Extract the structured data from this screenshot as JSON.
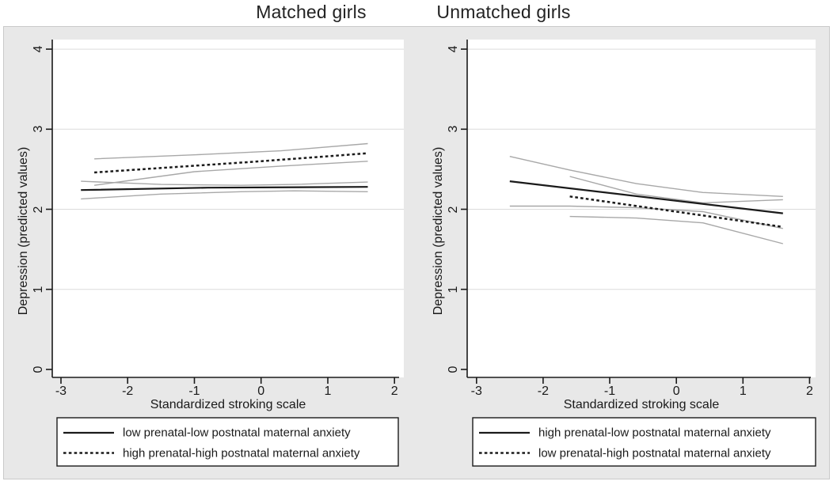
{
  "figure": {
    "background": "#e8e8e8",
    "plot_background": "#ffffff",
    "grid_color": "#dcdcdc",
    "axis_color": "#1a1a1a",
    "line_color": "#1a1a1a",
    "ci_color": "#a8a8a8"
  },
  "chart_data": [
    {
      "type": "line",
      "title": "Matched girls",
      "xlabel": "Standardized stroking scale",
      "ylabel": "Depression (predicted values)",
      "xticks": [
        -3,
        -2,
        -1,
        0,
        1,
        2
      ],
      "yticks": [
        0,
        1,
        2,
        3,
        4
      ],
      "xlim": [
        -3.13,
        2.14
      ],
      "ylim": [
        -0.1,
        4.12
      ],
      "grid": "horizontal gridlines at labeled y values",
      "legend_position": "below plot, boxed",
      "series": [
        {
          "name": "low prenatal-low postnatal maternal anxiety",
          "role": "mean",
          "style": "solid",
          "points": [
            [
              -2.7,
              2.24
            ],
            [
              -0.8,
              2.27
            ],
            [
              1.6,
              2.28
            ]
          ]
        },
        {
          "name": "low-low 95% CI upper",
          "role": "ci",
          "style": "ci",
          "points": [
            [
              -2.7,
              2.35
            ],
            [
              -1.5,
              2.31
            ],
            [
              -0.3,
              2.3
            ],
            [
              0.5,
              2.31
            ],
            [
              1.6,
              2.34
            ]
          ]
        },
        {
          "name": "low-low 95% CI lower",
          "role": "ci",
          "style": "ci",
          "points": [
            [
              -2.7,
              2.13
            ],
            [
              -1.5,
              2.19
            ],
            [
              -0.3,
              2.22
            ],
            [
              0.5,
              2.23
            ],
            [
              1.6,
              2.22
            ]
          ]
        },
        {
          "name": "high prenatal-high postnatal maternal anxiety",
          "role": "mean",
          "style": "dashed",
          "points": [
            [
              -2.5,
              2.46
            ],
            [
              0,
              2.6
            ],
            [
              1.6,
              2.7
            ]
          ]
        },
        {
          "name": "high-high 95% CI upper",
          "role": "ci",
          "style": "ci",
          "points": [
            [
              -2.5,
              2.63
            ],
            [
              -1.0,
              2.68
            ],
            [
              0.3,
              2.73
            ],
            [
              1.6,
              2.82
            ]
          ]
        },
        {
          "name": "high-high 95% CI lower",
          "role": "ci",
          "style": "ci",
          "points": [
            [
              -2.5,
              2.3
            ],
            [
              -1.0,
              2.47
            ],
            [
              0.3,
              2.54
            ],
            [
              1.6,
              2.6
            ]
          ]
        }
      ],
      "legend": [
        {
          "style": "solid",
          "label": "low prenatal-low postnatal maternal anxiety"
        },
        {
          "style": "dashed",
          "label": "high prenatal-high postnatal maternal anxiety"
        }
      ]
    },
    {
      "type": "line",
      "title": "Unmatched girls",
      "xlabel": "Standardized stroking scale",
      "ylabel": "Depression (predicted values)",
      "xticks": [
        -3,
        -2,
        -1,
        0,
        1,
        2
      ],
      "yticks": [
        0,
        1,
        2,
        3,
        4
      ],
      "xlim": [
        -3.14,
        2.09
      ],
      "ylim": [
        -0.1,
        4.12
      ],
      "grid": "horizontal gridlines at labeled y values",
      "legend_position": "below plot, boxed",
      "series": [
        {
          "name": "high prenatal-low postnatal maternal anxiety",
          "role": "mean",
          "style": "solid",
          "points": [
            [
              -2.5,
              2.35
            ],
            [
              1.6,
              1.95
            ]
          ]
        },
        {
          "name": "high-low 95% CI upper",
          "role": "ci",
          "style": "ci",
          "points": [
            [
              -2.5,
              2.66
            ],
            [
              -1.6,
              2.49
            ],
            [
              -0.6,
              2.32
            ],
            [
              0.4,
              2.21
            ],
            [
              1.6,
              2.16
            ]
          ]
        },
        {
          "name": "high-low 95% CI lower",
          "role": "ci",
          "style": "ci",
          "points": [
            [
              -2.5,
              2.04
            ],
            [
              -1.6,
              2.04
            ],
            [
              -0.6,
              2.02
            ],
            [
              0.4,
              1.97
            ],
            [
              1.6,
              1.76
            ]
          ]
        },
        {
          "name": "low prenatal-high postnatal maternal anxiety",
          "role": "mean",
          "style": "dashed",
          "points": [
            [
              -1.6,
              2.16
            ],
            [
              1.6,
              1.78
            ]
          ]
        },
        {
          "name": "low-high 95% CI upper",
          "role": "ci",
          "style": "ci",
          "points": [
            [
              -1.6,
              2.41
            ],
            [
              -0.6,
              2.19
            ],
            [
              0.4,
              2.08
            ],
            [
              1.6,
              2.12
            ]
          ]
        },
        {
          "name": "low-high 95% CI lower",
          "role": "ci",
          "style": "ci",
          "points": [
            [
              -1.6,
              1.91
            ],
            [
              -0.6,
              1.89
            ],
            [
              0.4,
              1.83
            ],
            [
              1.6,
              1.57
            ]
          ]
        }
      ],
      "legend": [
        {
          "style": "solid",
          "label": "high prenatal-low postnatal maternal anxiety"
        },
        {
          "style": "dashed",
          "label": "low prenatal-high postnatal maternal anxiety"
        }
      ]
    }
  ]
}
